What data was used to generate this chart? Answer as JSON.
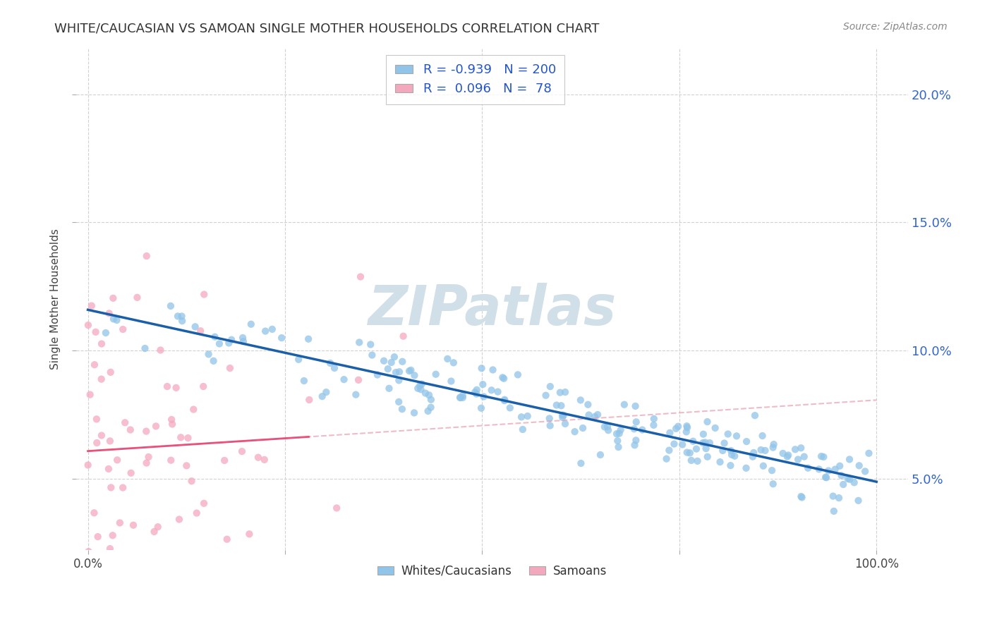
{
  "title": "WHITE/CAUCASIAN VS SAMOAN SINGLE MOTHER HOUSEHOLDS CORRELATION CHART",
  "source": "Source: ZipAtlas.com",
  "ylabel": "Single Mother Households",
  "ytick_values": [
    0.05,
    0.1,
    0.15,
    0.2
  ],
  "legend_line1_r": "-0.939",
  "legend_line1_n": "200",
  "legend_line2_r": "0.096",
  "legend_line2_n": "78",
  "blue_color": "#90c4e8",
  "pink_color": "#f4a8be",
  "blue_line_color": "#1a5fa8",
  "pink_line_color": "#e8517a",
  "pink_dash_color": "#e8a0b0",
  "watermark": "ZIPatlas",
  "watermark_color": "#d0dfe8",
  "seed_blue": 7,
  "seed_pink": 11
}
